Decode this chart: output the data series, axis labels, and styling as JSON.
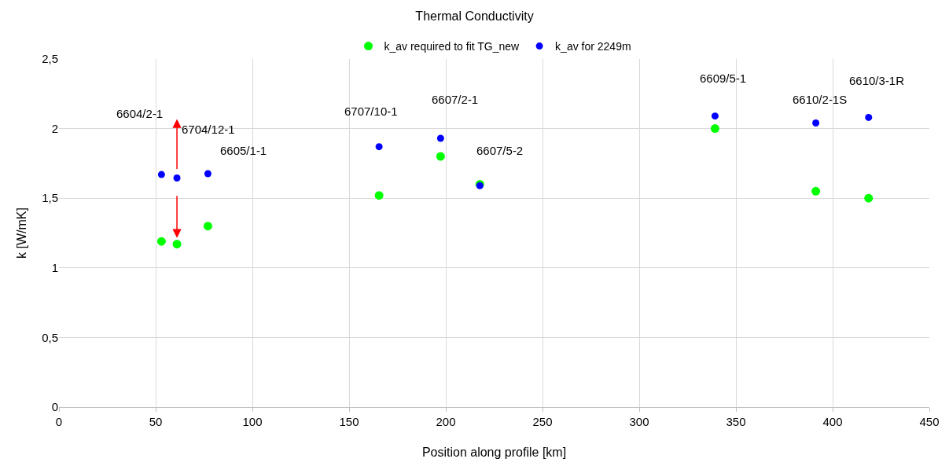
{
  "chart_data": {
    "type": "scatter",
    "title": "Thermal Conductivity",
    "xlabel": "Position along profile [km]",
    "ylabel": "k [W/mK]",
    "x": [
      53,
      61,
      77,
      165.5,
      197.3,
      217.6,
      339.2,
      391.3,
      418.6
    ],
    "series": [
      {
        "name": "k_av required to fit TG_new",
        "color": "#00ff00",
        "values": [
          1.19,
          1.17,
          1.3,
          1.52,
          1.8,
          1.6,
          2.0,
          1.55,
          1.5
        ]
      },
      {
        "name": "k_av for 2249m",
        "color": "#0000ff",
        "values": [
          1.67,
          1.645,
          1.676,
          1.87,
          1.93,
          1.59,
          2.09,
          2.04,
          2.08
        ]
      }
    ],
    "annotations": [
      "6604/2-1",
      "6704/12-1",
      {
        "text": "6605/1-1",
        "x": 77,
        "y": 1.676
      },
      {
        "text": "6707/10-1",
        "x": 165.5,
        "y": 1.87
      },
      {
        "text": "6607/2-1",
        "x": 197.3,
        "y": 1.93
      },
      {
        "text": "6607/5-2",
        "x": 217.6,
        "y": 1.59
      },
      {
        "text": "6609/5-1",
        "x": 339.2,
        "y": 2.09
      },
      {
        "text": "6610/2-1S",
        "x": 391.3,
        "y": 2.04
      },
      {
        "text": "6610/3-1R",
        "x": 418.6,
        "y": 2.08
      }
    ],
    "xlim": [
      0,
      450
    ],
    "xticks": [
      0,
      50,
      100,
      150,
      200,
      250,
      300,
      350,
      400,
      450
    ],
    "ylim": [
      0,
      2.5
    ],
    "yticks": [
      0,
      {
        "value": 0.5,
        "label": "0,5"
      },
      1,
      {
        "value": 1.5,
        "label": "1,5"
      },
      2,
      {
        "value": 2.5,
        "label": "2,5"
      }
    ],
    "grid": true,
    "legend": "top",
    "marker": "circle"
  }
}
